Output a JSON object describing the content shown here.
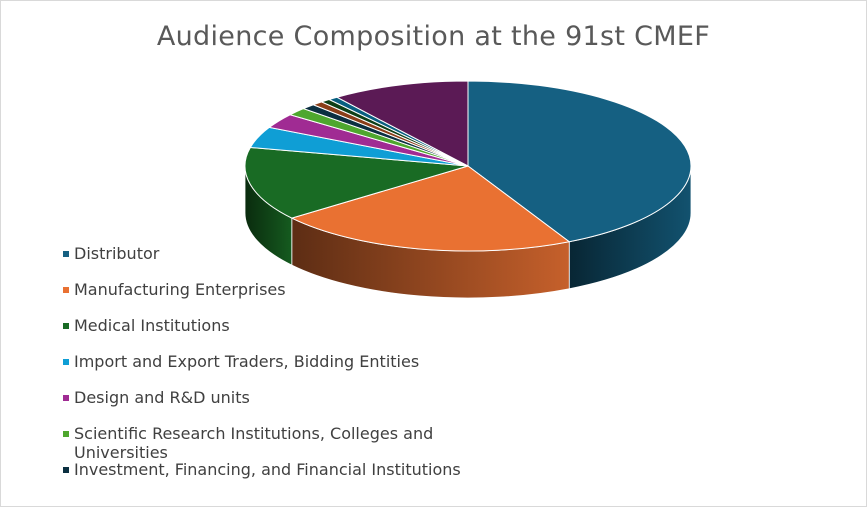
{
  "chart_data": {
    "type": "pie",
    "title": "Audience Composition at the 91st CMEF",
    "categories": [
      "Distributor",
      "Manufacturing Enterprises",
      "Medical Institutions",
      "Import and Export Traders, Bidding Entities",
      "Design and R&D units",
      "Scientific Research Institutions, Colleges and Universities",
      "Investment, Financing, and Financial Institutions",
      "",
      "",
      "",
      ""
    ],
    "values": [
      42.5,
      22.0,
      14.0,
      4.0,
      2.8,
      1.5,
      1.0,
      0.8,
      0.7,
      0.7,
      10.0
    ],
    "colors": [
      "#156082",
      "#e97132",
      "#196b24",
      "#0f9ed5",
      "#a02b93",
      "#4ea72e",
      "#0b3041",
      "#8a3e18",
      "#0f4017",
      "#095f80",
      "#5b1a55"
    ],
    "legend_position": "left",
    "style": "3d-pie"
  }
}
